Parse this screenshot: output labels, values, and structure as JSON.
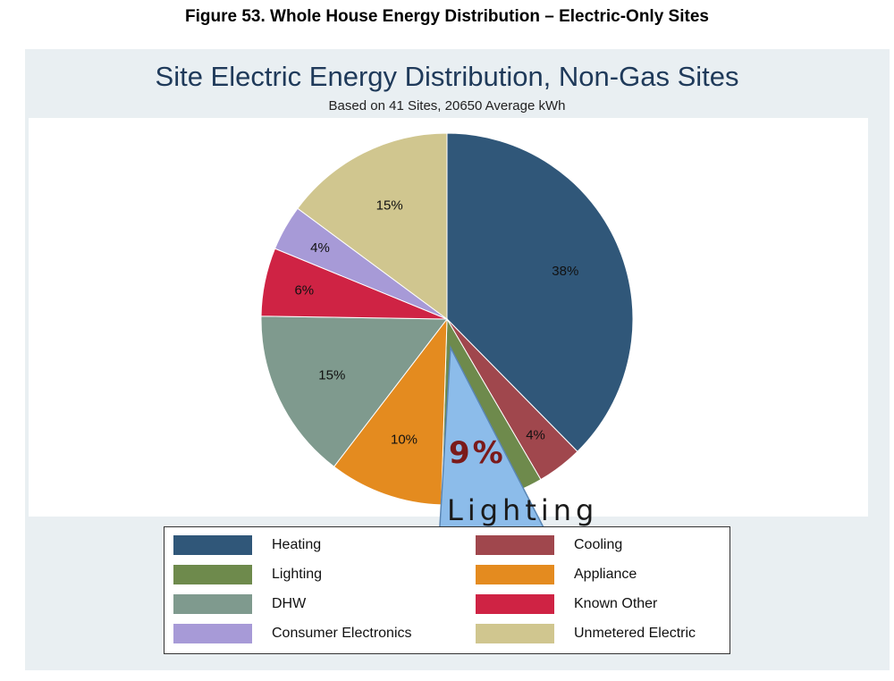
{
  "figure_caption": "Figure 53.  Whole House Energy Distribution – Electric-Only Sites",
  "chart_data": {
    "type": "pie",
    "title": "Site Electric Energy Distribution, Non-Gas Sites",
    "subtitle": "Based on 41 Sites, 20650 Average kWh",
    "slices": [
      {
        "name": "Heating",
        "value": 38,
        "label": "38%",
        "color": "#305779"
      },
      {
        "name": "Cooling",
        "value": 4,
        "label": "4%",
        "color": "#a0474d"
      },
      {
        "name": "Lighting",
        "value": 9,
        "label": "",
        "color": "#6e8a4c"
      },
      {
        "name": "Appliance",
        "value": 10,
        "label": "10%",
        "color": "#e48b1f"
      },
      {
        "name": "DHW",
        "value": 15,
        "label": "15%",
        "color": "#7f9a8e"
      },
      {
        "name": "Known Other",
        "value": 6,
        "label": "6%",
        "color": "#cf2344"
      },
      {
        "name": "Consumer Electronics",
        "value": 4,
        "label": "4%",
        "color": "#a79ad7"
      },
      {
        "name": "Unmetered Electric",
        "value": 15,
        "label": "15%",
        "color": "#d0c68f"
      }
    ],
    "callout": {
      "value": "9%",
      "name": "Lighting",
      "color": "#8cbcea"
    },
    "legend": [
      [
        "Heating",
        "Cooling"
      ],
      [
        "Lighting",
        "Appliance"
      ],
      [
        "DHW",
        "Known Other"
      ],
      [
        "Consumer Electronics",
        "Unmetered Electric"
      ]
    ]
  }
}
